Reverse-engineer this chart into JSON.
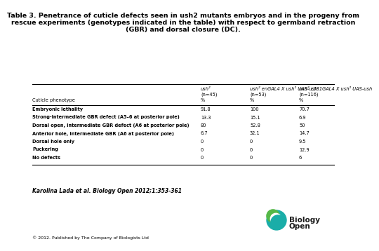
{
  "title_line1": "Table 3. Penetrance of cuticle defects seen in ush2 mutants embryos and in the progeny from",
  "title_line2": "rescue experiments (genotypes indicated in the table) with respect to germband retraction",
  "title_line3": "(GBR) and dorsal closure (DC).",
  "col_headers": [
    [
      "ush²",
      "ush² enGAL4 X ush² UAS-ush",
      "ush² c381GAL4 X ush² UAS-ush"
    ],
    [
      "(n=45)",
      "(n=53)",
      "(n=116)"
    ],
    [
      "%",
      "%",
      "%"
    ]
  ],
  "row_label_header": "Cuticle phenotype",
  "rows": [
    {
      "label": "Embryonic lethality",
      "bold": true,
      "values": [
        "91.8",
        "100",
        "70.7"
      ]
    },
    {
      "label": "Strong-intermediate GBR defect (A5–6 at posterior pole)",
      "bold": true,
      "values": [
        "13.3",
        "15.1",
        "6.9"
      ]
    },
    {
      "label": "Dorsal open, intermediate GBR defect (A6 at posterior pole)",
      "bold": true,
      "values": [
        "80",
        "52.8",
        "50"
      ]
    },
    {
      "label": "Anterior hole, intermediate GBR (A6 at posterior pole)",
      "bold": true,
      "values": [
        "6.7",
        "32.1",
        "14.7"
      ]
    },
    {
      "label": "Dorsal hole only",
      "bold": true,
      "values": [
        "0",
        "0",
        "9.5"
      ]
    },
    {
      "label": "Puckering",
      "bold": true,
      "values": [
        "0",
        "0",
        "12.9"
      ]
    },
    {
      "label": "No defects",
      "bold": true,
      "values": [
        "0",
        "0",
        "6"
      ]
    }
  ],
  "footer_citation": "Karolina Lada et al. Biology Open 2012;1:353-361",
  "footer_copyright": "© 2012. Published by The Company of Biologists Ltd",
  "bg_color": "#ffffff",
  "text_color": "#000000",
  "line_color": "#000000",
  "logo_teal": "#1aada8",
  "logo_green": "#55b848"
}
